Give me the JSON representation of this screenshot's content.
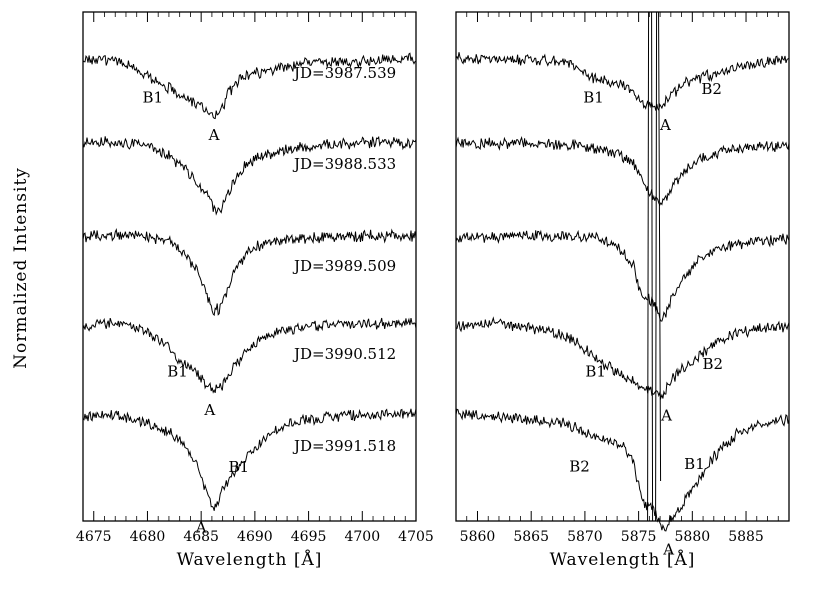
{
  "figure": {
    "ylabel": "Normalized Intensity"
  },
  "chart_data": [
    {
      "type": "line",
      "xlabel": "Wavelength [Å]",
      "xlim": [
        4674,
        4705
      ],
      "x_ticks": [
        4675,
        4680,
        4685,
        4690,
        4695,
        4700,
        4705
      ],
      "series": [
        {
          "label": "JD=3987.539",
          "annotations": [
            {
              "text": "B1",
              "x": 4680.5
            },
            {
              "text": "A",
              "x": 4686.2
            }
          ],
          "points": [
            [
              4674,
              0.985
            ],
            [
              4676,
              0.988
            ],
            [
              4678,
              0.975
            ],
            [
              4680,
              0.945
            ],
            [
              4681.5,
              0.925
            ],
            [
              4683,
              0.9
            ],
            [
              4684.5,
              0.875
            ],
            [
              4685.5,
              0.86
            ],
            [
              4686.3,
              0.845
            ],
            [
              4687,
              0.87
            ],
            [
              4687.6,
              0.905
            ],
            [
              4688.5,
              0.935
            ],
            [
              4690,
              0.95
            ],
            [
              4692,
              0.965
            ],
            [
              4694,
              0.975
            ],
            [
              4697,
              0.98
            ],
            [
              4700,
              0.982
            ],
            [
              4703,
              0.985
            ],
            [
              4705,
              0.99
            ]
          ]
        },
        {
          "label": "JD=3988.533",
          "annotations": [],
          "points": [
            [
              4674,
              0.99
            ],
            [
              4676,
              0.992
            ],
            [
              4678,
              0.988
            ],
            [
              4680,
              0.985
            ],
            [
              4682,
              0.96
            ],
            [
              4683.5,
              0.93
            ],
            [
              4684.5,
              0.9
            ],
            [
              4685.5,
              0.87
            ],
            [
              4686.3,
              0.835
            ],
            [
              4687,
              0.845
            ],
            [
              4687.6,
              0.88
            ],
            [
              4688.5,
              0.925
            ],
            [
              4690,
              0.955
            ],
            [
              4692,
              0.97
            ],
            [
              4694,
              0.98
            ],
            [
              4697,
              0.985
            ],
            [
              4700,
              0.99
            ],
            [
              4703,
              0.99
            ],
            [
              4705,
              0.992
            ]
          ]
        },
        {
          "label": "JD=3989.509",
          "annotations": [],
          "points": [
            [
              4674,
              0.99
            ],
            [
              4676,
              0.99
            ],
            [
              4678,
              0.992
            ],
            [
              4680,
              0.988
            ],
            [
              4682,
              0.978
            ],
            [
              4683.5,
              0.955
            ],
            [
              4684.5,
              0.925
            ],
            [
              4685.3,
              0.89
            ],
            [
              4686,
              0.84
            ],
            [
              4686.7,
              0.845
            ],
            [
              4687.4,
              0.88
            ],
            [
              4688.2,
              0.925
            ],
            [
              4689.5,
              0.96
            ],
            [
              4691,
              0.978
            ],
            [
              4694,
              0.985
            ],
            [
              4697,
              0.988
            ],
            [
              4700,
              0.99
            ],
            [
              4703,
              0.99
            ],
            [
              4705,
              0.99
            ]
          ]
        },
        {
          "label": "JD=3990.512",
          "annotations": [
            {
              "text": "B1",
              "x": 4682.8
            },
            {
              "text": "A",
              "x": 4685.8
            }
          ],
          "points": [
            [
              4674,
              0.985
            ],
            [
              4676,
              0.99
            ],
            [
              4678,
              0.985
            ],
            [
              4680,
              0.975
            ],
            [
              4681.5,
              0.955
            ],
            [
              4683,
              0.925
            ],
            [
              4684.2,
              0.91
            ],
            [
              4685.3,
              0.885
            ],
            [
              4686.2,
              0.87
            ],
            [
              4687,
              0.88
            ],
            [
              4687.8,
              0.905
            ],
            [
              4689,
              0.935
            ],
            [
              4690.5,
              0.96
            ],
            [
              4692,
              0.975
            ],
            [
              4695,
              0.985
            ],
            [
              4698,
              0.988
            ],
            [
              4701,
              0.99
            ],
            [
              4705,
              0.99
            ]
          ]
        },
        {
          "label": "JD=3991.518",
          "annotations": [
            {
              "text": "A",
              "x": 4685.0
            },
            {
              "text": "B1",
              "x": 4688.5
            }
          ],
          "points": [
            [
              4674,
              0.985
            ],
            [
              4676,
              0.988
            ],
            [
              4678,
              0.985
            ],
            [
              4680,
              0.975
            ],
            [
              4682,
              0.965
            ],
            [
              4683.5,
              0.945
            ],
            [
              4684.8,
              0.915
            ],
            [
              4685.6,
              0.875
            ],
            [
              4686.2,
              0.86
            ],
            [
              4687,
              0.885
            ],
            [
              4688,
              0.91
            ],
            [
              4689.3,
              0.93
            ],
            [
              4690.5,
              0.95
            ],
            [
              4692,
              0.968
            ],
            [
              4694,
              0.978
            ],
            [
              4697,
              0.985
            ],
            [
              4700,
              0.988
            ],
            [
              4705,
              0.99
            ]
          ]
        }
      ]
    },
    {
      "type": "line",
      "xlabel": "Wavelength [Å]",
      "xlim": [
        5858,
        5889
      ],
      "x_ticks": [
        5860,
        5865,
        5870,
        5875,
        5880,
        5885
      ],
      "series": [
        {
          "label": "",
          "annotations": [
            {
              "text": "B1",
              "x": 5870.8
            },
            {
              "text": "A",
              "x": 5877.5
            },
            {
              "text": "B2",
              "x": 5881.8
            }
          ],
          "points": [
            [
              5858,
              0.99
            ],
            [
              5862,
              0.988
            ],
            [
              5866,
              0.985
            ],
            [
              5869,
              0.975
            ],
            [
              5870.5,
              0.945
            ],
            [
              5872,
              0.93
            ],
            [
              5873.5,
              0.925
            ],
            [
              5874.5,
              0.905
            ],
            [
              5875.5,
              0.875
            ],
            [
              5876.5,
              0.87
            ],
            [
              5877.3,
              0.875
            ],
            [
              5878.3,
              0.905
            ],
            [
              5879.5,
              0.93
            ],
            [
              5881,
              0.945
            ],
            [
              5882.5,
              0.95
            ],
            [
              5884,
              0.965
            ],
            [
              5886,
              0.978
            ],
            [
              5889,
              0.985
            ]
          ]
        },
        {
          "label": "",
          "annotations": [],
          "points": [
            [
              5858,
              0.988
            ],
            [
              5862,
              0.99
            ],
            [
              5866,
              0.987
            ],
            [
              5869,
              0.985
            ],
            [
              5871,
              0.978
            ],
            [
              5873,
              0.965
            ],
            [
              5874.5,
              0.945
            ],
            [
              5875.5,
              0.9
            ],
            [
              5876.3,
              0.87
            ],
            [
              5877.2,
              0.845
            ],
            [
              5878,
              0.88
            ],
            [
              5879,
              0.92
            ],
            [
              5880.5,
              0.95
            ],
            [
              5882,
              0.965
            ],
            [
              5884,
              0.975
            ],
            [
              5886,
              0.98
            ],
            [
              5889,
              0.985
            ]
          ]
        },
        {
          "label": "",
          "annotations": [],
          "points": [
            [
              5858,
              0.985
            ],
            [
              5862,
              0.988
            ],
            [
              5866,
              0.99
            ],
            [
              5869,
              0.988
            ],
            [
              5871,
              0.985
            ],
            [
              5873,
              0.97
            ],
            [
              5874.5,
              0.93
            ],
            [
              5875.2,
              0.87
            ],
            [
              5876.3,
              0.86
            ],
            [
              5877.2,
              0.825
            ],
            [
              5878,
              0.86
            ],
            [
              5879,
              0.9
            ],
            [
              5880.5,
              0.94
            ],
            [
              5882,
              0.962
            ],
            [
              5884,
              0.975
            ],
            [
              5886,
              0.98
            ],
            [
              5889,
              0.985
            ]
          ]
        },
        {
          "label": "",
          "annotations": [
            {
              "text": "B1",
              "x": 5871.0
            },
            {
              "text": "A",
              "x": 5877.6
            },
            {
              "text": "B2",
              "x": 5881.9
            }
          ],
          "points": [
            [
              5858,
              0.985
            ],
            [
              5862,
              0.988
            ],
            [
              5866,
              0.98
            ],
            [
              5868.5,
              0.965
            ],
            [
              5870,
              0.945
            ],
            [
              5871.5,
              0.92
            ],
            [
              5873,
              0.905
            ],
            [
              5874.5,
              0.885
            ],
            [
              5875.3,
              0.875
            ],
            [
              5876.3,
              0.87
            ],
            [
              5877.2,
              0.86
            ],
            [
              5878,
              0.885
            ],
            [
              5879,
              0.91
            ],
            [
              5880.5,
              0.93
            ],
            [
              5882,
              0.955
            ],
            [
              5884,
              0.972
            ],
            [
              5886,
              0.98
            ],
            [
              5889,
              0.985
            ]
          ]
        },
        {
          "label": "",
          "annotations": [
            {
              "text": "B2",
              "x": 5869.5
            },
            {
              "text": "A",
              "x": 5877.8
            },
            {
              "text": "B1",
              "x": 5880.2
            }
          ],
          "points": [
            [
              5858,
              0.99
            ],
            [
              5862,
              0.985
            ],
            [
              5866,
              0.98
            ],
            [
              5868.5,
              0.975
            ],
            [
              5870.5,
              0.96
            ],
            [
              5872,
              0.955
            ],
            [
              5873.5,
              0.945
            ],
            [
              5874.5,
              0.925
            ],
            [
              5875.3,
              0.87
            ],
            [
              5876.3,
              0.86
            ],
            [
              5877.3,
              0.83
            ],
            [
              5878,
              0.845
            ],
            [
              5879,
              0.865
            ],
            [
              5880.5,
              0.895
            ],
            [
              5882,
              0.93
            ],
            [
              5884,
              0.96
            ],
            [
              5886,
              0.975
            ],
            [
              5889,
              0.982
            ]
          ]
        }
      ]
    }
  ]
}
